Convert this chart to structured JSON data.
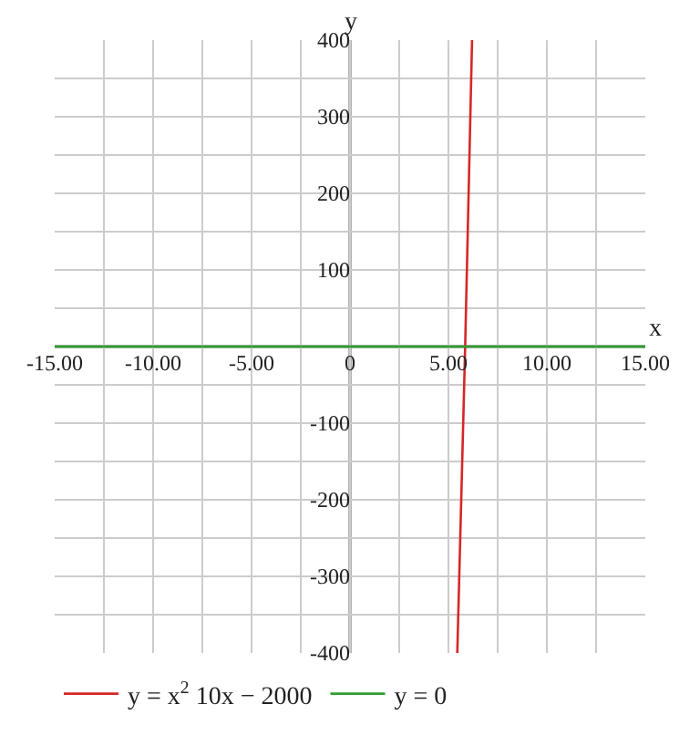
{
  "chart_data": {
    "type": "line",
    "xlabel": "x",
    "ylabel": "y",
    "series": [
      {
        "name": "y = x$^{2}$ 10x − 2000",
        "color": "#d62728",
        "x": [
          5.45,
          5.85,
          6.2
        ],
        "values": [
          -400,
          0,
          400
        ]
      },
      {
        "name": "y = 0",
        "color": "#2ca02c",
        "x": [
          -15,
          15
        ],
        "values": [
          0,
          0
        ]
      }
    ],
    "xlim": [
      -15,
      15
    ],
    "xticks": [
      {
        "value": -15,
        "label": "-15.00"
      },
      {
        "value": -12.5,
        "label": null
      },
      {
        "value": -10,
        "label": "-10.00"
      },
      {
        "value": -7.5,
        "label": null
      },
      {
        "value": -5,
        "label": "-5.00"
      },
      {
        "value": -2.5,
        "label": null
      },
      0,
      {
        "value": 2.5,
        "label": null
      },
      {
        "value": 5,
        "label": "5.00"
      },
      {
        "value": 7.5,
        "label": null
      },
      {
        "value": 10,
        "label": "10.00"
      },
      {
        "value": 12.5,
        "label": null
      },
      {
        "value": 15,
        "label": "15.00"
      }
    ],
    "ylim": [
      -400,
      400
    ],
    "yticks": [
      -400,
      {
        "value": -350,
        "label": null
      },
      -300,
      {
        "value": -250,
        "label": null
      },
      -200,
      {
        "value": -150,
        "label": null
      },
      -100,
      {
        "value": -50,
        "label": null
      },
      {
        "value": 0,
        "label": null
      },
      {
        "value": 50,
        "label": null
      },
      100,
      {
        "value": 150,
        "label": null
      },
      200,
      {
        "value": 250,
        "label": null
      },
      300,
      {
        "value": 350,
        "label": null
      },
      400
    ],
    "grid": true,
    "legend": "bottom",
    "marker": "none",
    "line_style": "solid"
  }
}
